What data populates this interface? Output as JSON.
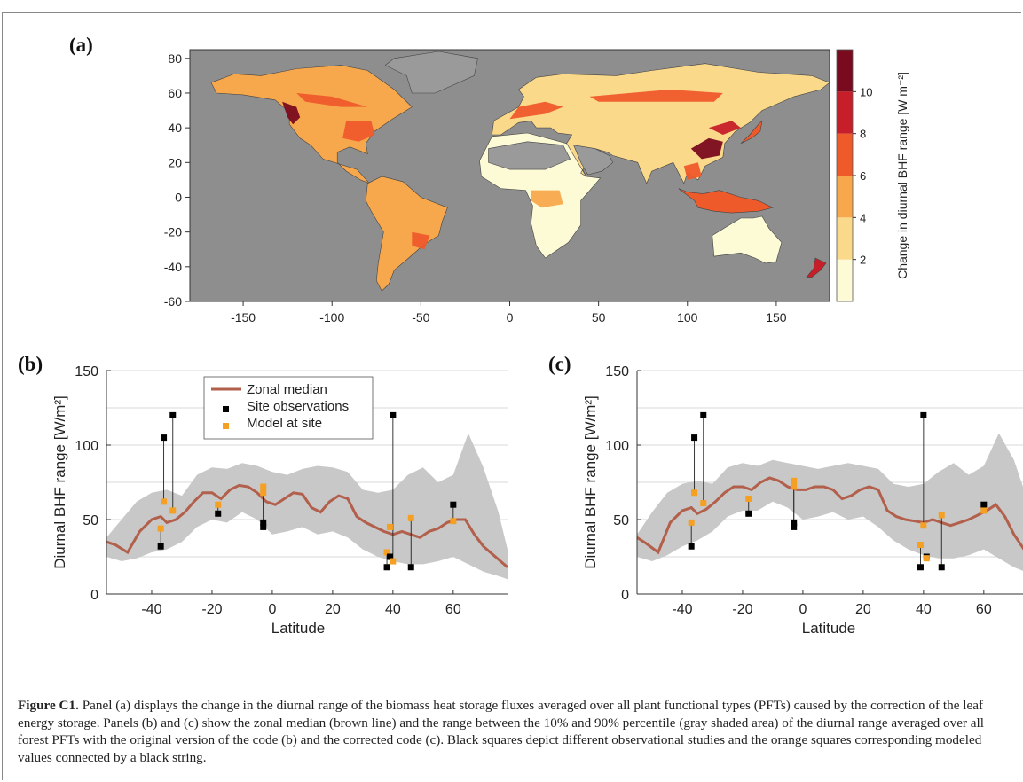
{
  "panels": {
    "a_label": "(a)",
    "b_label": "(b)",
    "c_label": "(c)"
  },
  "colors": {
    "ocean_gray": "#8e8e8e",
    "median_line": "#b25f4b",
    "shade": "#c8c8c8",
    "site_obs": "#000000",
    "model_site": "#f5a022",
    "scale": [
      "#fdfbd6",
      "#fbd98a",
      "#f8a84c",
      "#ef5a2b",
      "#c61f29",
      "#7a0b1e"
    ]
  },
  "chart_data": [
    {
      "panel": "(a)",
      "type": "heatmap",
      "x_ticks": [
        -150,
        -100,
        -50,
        0,
        50,
        100,
        150
      ],
      "y_ticks": [
        -60,
        -40,
        -20,
        0,
        20,
        40,
        60,
        80
      ],
      "xlim": [
        -180,
        180
      ],
      "ylim": [
        -60,
        85
      ],
      "colorbar_label": "Change in diurnal BHF range [W m⁻²]",
      "colorbar_ticks": [
        2,
        4,
        6,
        8,
        10
      ],
      "colorbar_range": [
        0,
        12
      ]
    },
    {
      "panel": "(b)",
      "type": "line",
      "xlabel": "Latitude",
      "ylabel": "Diurnal BHF range [W/m²]",
      "x_ticks": [
        -40,
        -20,
        0,
        20,
        40,
        60
      ],
      "y_ticks": [
        0,
        50,
        100,
        150
      ],
      "xlim": [
        -55,
        78
      ],
      "ylim": [
        0,
        150
      ],
      "grid": "horizontal",
      "legend": [
        "Zonal median",
        "Site observations",
        "Model at site"
      ],
      "legend_position": "top-left",
      "median": {
        "x": [
          -55,
          -52,
          -48,
          -44,
          -40,
          -37,
          -35,
          -32,
          -29,
          -26,
          -23,
          -20,
          -17,
          -14,
          -11,
          -8,
          -5,
          -2,
          1,
          4,
          7,
          10,
          13,
          16,
          19,
          22,
          25,
          28,
          31,
          34,
          37,
          40,
          43,
          46,
          49,
          52,
          55,
          58,
          61,
          64,
          67,
          70,
          74,
          78
        ],
        "y": [
          35,
          33,
          28,
          42,
          50,
          52,
          48,
          50,
          55,
          62,
          68,
          68,
          64,
          70,
          73,
          72,
          68,
          62,
          60,
          64,
          68,
          67,
          58,
          55,
          62,
          66,
          64,
          52,
          48,
          45,
          42,
          40,
          42,
          40,
          38,
          42,
          44,
          48,
          50,
          50,
          40,
          32,
          25,
          18
        ]
      },
      "band": {
        "x": [
          -55,
          -50,
          -45,
          -40,
          -35,
          -30,
          -25,
          -20,
          -15,
          -10,
          -5,
          0,
          5,
          10,
          15,
          20,
          25,
          30,
          35,
          40,
          45,
          50,
          55,
          60,
          65,
          70,
          75,
          78
        ],
        "low": [
          25,
          22,
          24,
          28,
          30,
          35,
          45,
          50,
          48,
          55,
          50,
          40,
          42,
          45,
          40,
          42,
          38,
          30,
          25,
          22,
          20,
          20,
          22,
          25,
          20,
          15,
          12,
          10
        ],
        "high": [
          38,
          50,
          62,
          68,
          70,
          66,
          80,
          85,
          84,
          88,
          86,
          82,
          80,
          84,
          86,
          85,
          82,
          70,
          68,
          70,
          80,
          85,
          75,
          80,
          108,
          85,
          55,
          30
        ]
      },
      "sites": [
        {
          "lat": -37,
          "obs": 32,
          "model": 44
        },
        {
          "lat": -36,
          "obs": 105,
          "model": 62
        },
        {
          "lat": -33,
          "obs": 120,
          "model": 56
        },
        {
          "lat": -18,
          "obs": 54,
          "model": 60
        },
        {
          "lat": -3,
          "obs": 48,
          "model": 72
        },
        {
          "lat": -3,
          "obs": 45,
          "model": 68
        },
        {
          "lat": 38,
          "obs": 18,
          "model": 28
        },
        {
          "lat": 39,
          "obs": 25,
          "model": 45
        },
        {
          "lat": 40,
          "obs": 120,
          "model": 22
        },
        {
          "lat": 46,
          "obs": 18,
          "model": 51
        },
        {
          "lat": 60,
          "obs": 60,
          "model": 49
        }
      ]
    },
    {
      "panel": "(c)",
      "type": "line",
      "xlabel": "Latitude",
      "ylabel": "Diurnal BHF range [W/m²]",
      "x_ticks": [
        -40,
        -20,
        0,
        20,
        40,
        60
      ],
      "y_ticks": [
        0,
        50,
        100,
        150
      ],
      "xlim": [
        -55,
        78
      ],
      "ylim": [
        0,
        150
      ],
      "grid": "horizontal",
      "median": {
        "x": [
          -55,
          -52,
          -48,
          -44,
          -40,
          -37,
          -35,
          -32,
          -29,
          -26,
          -23,
          -20,
          -17,
          -14,
          -11,
          -8,
          -5,
          -2,
          1,
          4,
          7,
          10,
          13,
          16,
          19,
          22,
          25,
          28,
          31,
          34,
          37,
          40,
          43,
          46,
          49,
          52,
          55,
          58,
          61,
          64,
          67,
          70,
          74,
          78
        ],
        "y": [
          38,
          34,
          28,
          48,
          56,
          58,
          54,
          57,
          62,
          68,
          72,
          72,
          70,
          75,
          78,
          76,
          72,
          70,
          70,
          72,
          72,
          70,
          64,
          66,
          70,
          72,
          70,
          56,
          52,
          50,
          49,
          48,
          50,
          48,
          46,
          48,
          50,
          53,
          56,
          60,
          52,
          40,
          28,
          20
        ]
      },
      "band": {
        "x": [
          -55,
          -50,
          -45,
          -40,
          -35,
          -30,
          -25,
          -20,
          -15,
          -10,
          -5,
          0,
          5,
          10,
          15,
          20,
          25,
          30,
          35,
          40,
          45,
          50,
          55,
          60,
          65,
          70,
          75,
          78
        ],
        "low": [
          25,
          22,
          26,
          32,
          36,
          42,
          52,
          56,
          56,
          62,
          58,
          50,
          52,
          55,
          50,
          52,
          45,
          36,
          30,
          26,
          24,
          24,
          26,
          30,
          24,
          18,
          14,
          12
        ],
        "high": [
          40,
          55,
          68,
          74,
          76,
          74,
          85,
          88,
          86,
          90,
          88,
          86,
          84,
          86,
          88,
          86,
          84,
          74,
          72,
          74,
          82,
          88,
          80,
          86,
          108,
          90,
          60,
          34
        ]
      },
      "sites": [
        {
          "lat": -37,
          "obs": 32,
          "model": 48
        },
        {
          "lat": -36,
          "obs": 105,
          "model": 68
        },
        {
          "lat": -33,
          "obs": 120,
          "model": 61
        },
        {
          "lat": -18,
          "obs": 54,
          "model": 64
        },
        {
          "lat": -3,
          "obs": 48,
          "model": 76
        },
        {
          "lat": -3,
          "obs": 45,
          "model": 72
        },
        {
          "lat": 39,
          "obs": 18,
          "model": 33
        },
        {
          "lat": 40,
          "obs": 120,
          "model": 46
        },
        {
          "lat": 41,
          "obs": 25,
          "model": 24
        },
        {
          "lat": 46,
          "obs": 18,
          "model": 53
        },
        {
          "lat": 60,
          "obs": 60,
          "model": 56
        }
      ]
    }
  ],
  "caption": {
    "label": "Figure C1.",
    "text": " Panel (a) displays the change in the diurnal range of the biomass heat storage fluxes averaged over all plant functional types (PFTs) caused by the correction of the leaf energy storage. Panels (b) and (c) show the zonal median (brown line) and the range between the 10% and 90% percentile (gray shaded area) of the diurnal range averaged over all forest PFTs with the original version of the code (b) and the corrected code (c). Black squares depict different observational studies and the orange squares corresponding modeled values connected by a black string."
  }
}
